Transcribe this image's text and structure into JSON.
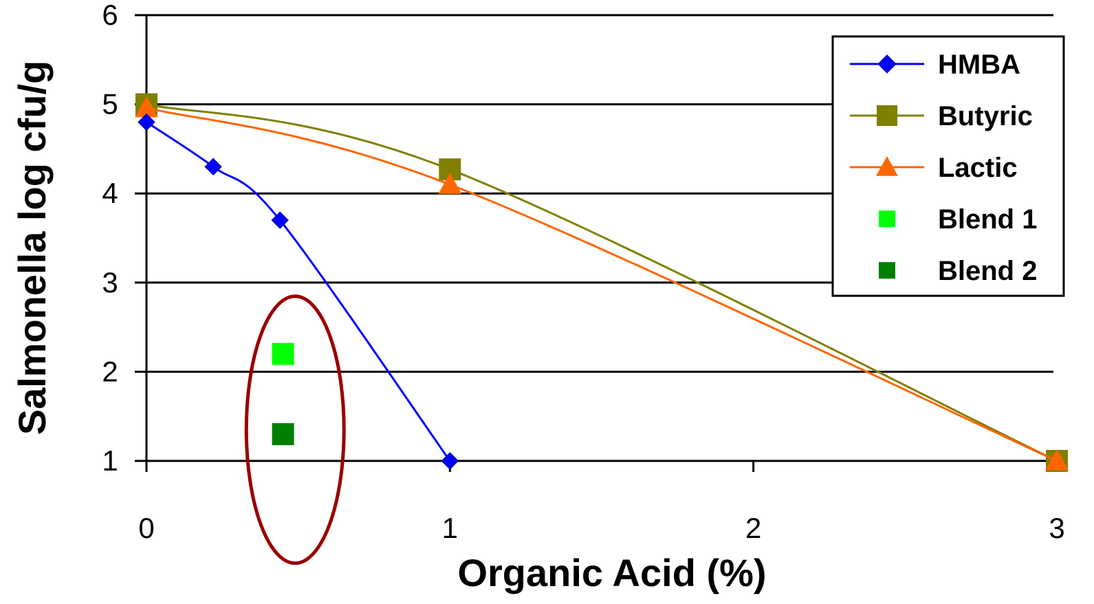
{
  "chart_data": {
    "type": "line",
    "title": "",
    "xlabel": "Organic Acid (%)",
    "ylabel": "Salmonella log cfu/g",
    "xlim": [
      0,
      3
    ],
    "ylim": [
      1,
      6
    ],
    "x_ticks": [
      "0",
      "1",
      "2",
      "3"
    ],
    "y_ticks": [
      "1",
      "2",
      "3",
      "4",
      "5",
      "6"
    ],
    "grid": "horizontal",
    "legend_position": "top-right",
    "series": [
      {
        "name": "HMBA",
        "color": "#0000ff",
        "marker": "diamond",
        "line": true,
        "points": [
          [
            0,
            4.8
          ],
          [
            0.22,
            4.3
          ],
          [
            0.44,
            3.7
          ],
          [
            1,
            1.0
          ]
        ]
      },
      {
        "name": "Butyric",
        "color": "#808000",
        "marker": "square",
        "line": true,
        "points": [
          [
            0,
            5.0
          ],
          [
            1,
            4.27
          ],
          [
            3,
            1.0
          ]
        ]
      },
      {
        "name": "Lactic",
        "color": "#ff6600",
        "marker": "triangle",
        "line": true,
        "points": [
          [
            0,
            4.96
          ],
          [
            1,
            4.1
          ],
          [
            3,
            1.0
          ]
        ]
      },
      {
        "name": "Blend 1",
        "color": "#00ff00",
        "marker": "square",
        "line": false,
        "points": [
          [
            0.45,
            2.2
          ]
        ]
      },
      {
        "name": "Blend 2",
        "color": "#007f00",
        "marker": "square",
        "line": false,
        "points": [
          [
            0.45,
            1.3
          ]
        ]
      }
    ],
    "annotations": [
      {
        "type": "ellipse-highlight",
        "color": "#990000",
        "center": [
          0.49,
          1.35
        ]
      }
    ]
  }
}
